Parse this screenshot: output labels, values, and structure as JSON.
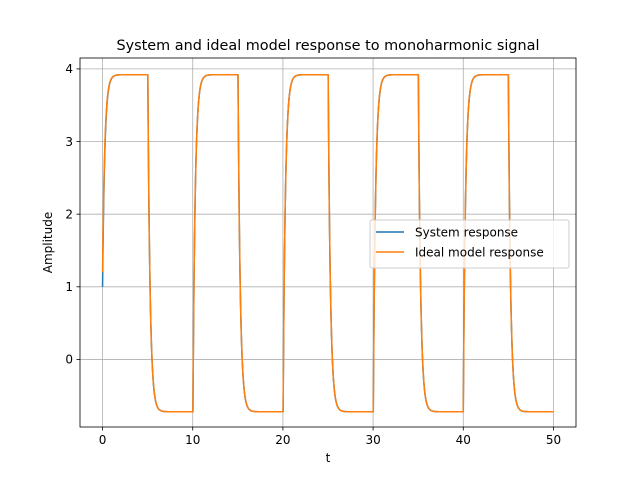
{
  "chart_data": {
    "type": "line",
    "title": "System and ideal model response to monoharmonic signal",
    "xlabel": "t",
    "ylabel": "Amplitude",
    "xlim": [
      -2.5,
      52.5
    ],
    "ylim": [
      -0.93,
      4.15
    ],
    "xticks": [
      0,
      10,
      20,
      30,
      40,
      50
    ],
    "yticks": [
      0,
      1,
      2,
      3,
      4
    ],
    "grid": true,
    "legend_position": "center-right",
    "input": {
      "period": 10,
      "high_level": 3.92,
      "low_level": -0.72,
      "time_constant": 0.25,
      "t_end": 50
    },
    "series": [
      {
        "name": "System response",
        "color": "#1f77b4",
        "initial_value": 1.0,
        "values_note_points": [
          [
            0,
            1.0
          ],
          [
            0,
            1.2
          ]
        ]
      },
      {
        "name": "Ideal model response",
        "color": "#ff7f0e",
        "initial_value": 1.2
      }
    ]
  }
}
